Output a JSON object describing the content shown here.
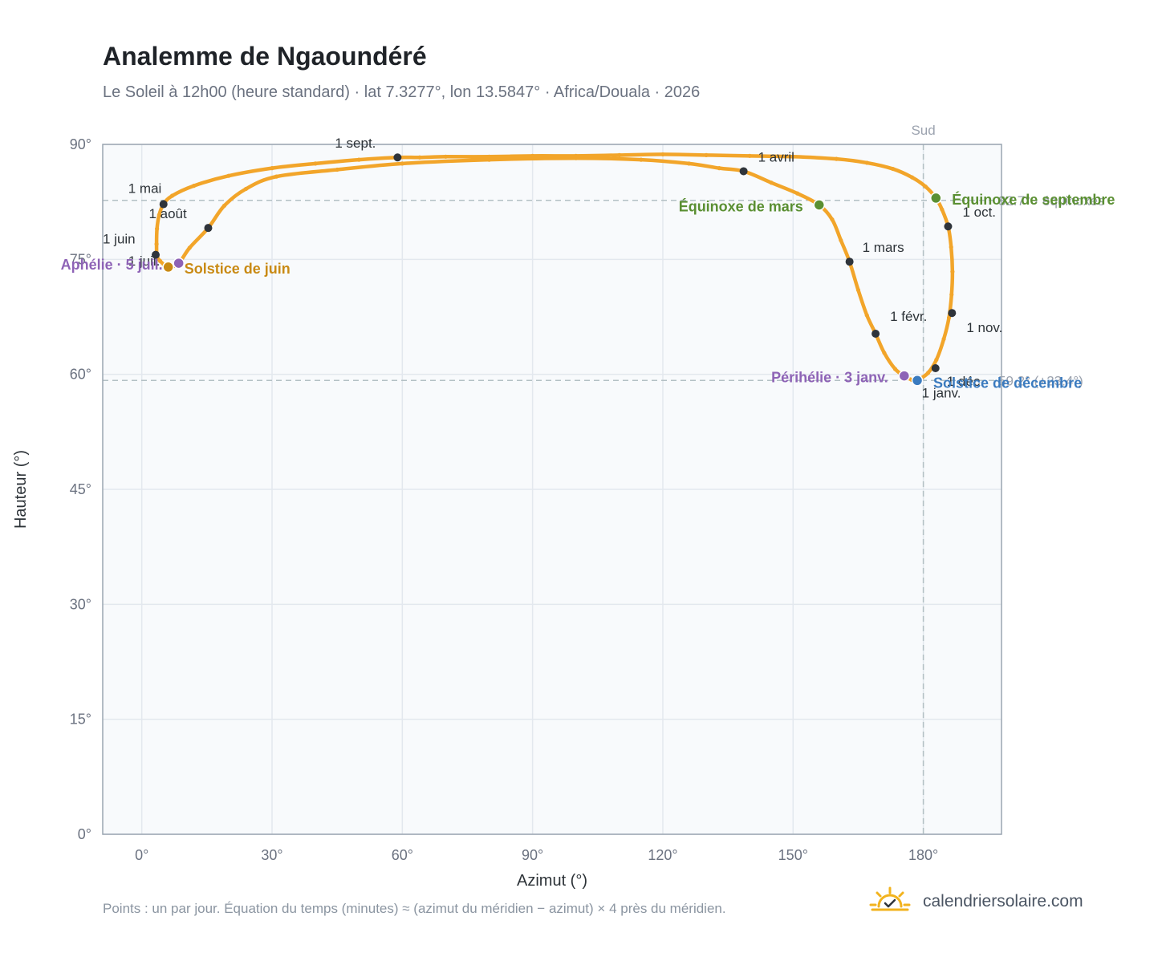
{
  "title": "Analemme de Ngaoundéré",
  "subtitle": "Le Soleil à 12h00 (heure standard) · lat 7.3277°, lon 13.5847° · Africa/Douala · 2026",
  "footnote": "Points : un par jour. Équation du temps (minutes) ≈ (azimut du méridien − azimut) × 4 près du méridien.",
  "brand": {
    "text": "calendriersolaire.com",
    "icon": "sun-check-icon",
    "color": "#f2b31e"
  },
  "colors": {
    "curve": "#f2a52a",
    "month_marker": "#2f343b",
    "equinox": "#5a8f32",
    "solstice_june": "#c98a14",
    "solstice_december": "#3b7bbf",
    "apsis": "#8e63b6",
    "plot_bg": "#f8fafc",
    "reference_line": "#b3c0c4"
  },
  "chart_data": {
    "type": "scatter",
    "title": "Analemme de Ngaoundéré",
    "xlabel": "Azimut (°)",
    "ylabel": "Hauteur (°)",
    "xlim": [
      -9,
      198
    ],
    "ylim": [
      0,
      90
    ],
    "xticks": [
      0,
      30,
      60,
      90,
      120,
      150,
      180
    ],
    "yticks": [
      0,
      15,
      30,
      45,
      60,
      75,
      90
    ],
    "tick_suffix": "°",
    "grid": true,
    "sun_path_anchors": [
      [
        178.6,
        59.2
      ],
      [
        179.2,
        59.4
      ],
      [
        181.1,
        60.2
      ],
      [
        183.0,
        61.9
      ],
      [
        184.7,
        64.6
      ],
      [
        185.9,
        67.4
      ],
      [
        186.5,
        70.4
      ],
      [
        186.7,
        73.4
      ],
      [
        186.4,
        76.6
      ],
      [
        185.7,
        79.3
      ],
      [
        184.3,
        81.5
      ],
      [
        182.9,
        83.0
      ],
      [
        180.5,
        84.5
      ],
      [
        177.4,
        85.7
      ],
      [
        173.0,
        86.8
      ],
      [
        167.0,
        87.6
      ],
      [
        160.0,
        88.1
      ],
      [
        150.0,
        88.4
      ],
      [
        140.0,
        88.5
      ],
      [
        130.0,
        88.6
      ],
      [
        120.0,
        88.7
      ],
      [
        110.0,
        88.6
      ],
      [
        100.0,
        88.5
      ],
      [
        90.0,
        88.5
      ],
      [
        80.0,
        88.4
      ],
      [
        70.0,
        88.4
      ],
      [
        64.0,
        88.3
      ],
      [
        58.9,
        88.3
      ],
      [
        50.0,
        88.0
      ],
      [
        40.0,
        87.5
      ],
      [
        30.0,
        86.9
      ],
      [
        20.0,
        85.9
      ],
      [
        12.0,
        84.6
      ],
      [
        7.0,
        83.3
      ],
      [
        5.0,
        82.2
      ],
      [
        4.0,
        80.8
      ],
      [
        3.5,
        79.0
      ],
      [
        3.4,
        77.0
      ],
      [
        3.5,
        75.5
      ],
      [
        4.2,
        74.8
      ],
      [
        6.1,
        74.0
      ],
      [
        8.5,
        74.5
      ],
      [
        11.0,
        76.5
      ],
      [
        15.3,
        79.1
      ],
      [
        19.0,
        82.0
      ],
      [
        24.0,
        84.2
      ],
      [
        31.0,
        85.8
      ],
      [
        45.0,
        86.7
      ],
      [
        60.0,
        87.5
      ],
      [
        80.0,
        88.0
      ],
      [
        100.0,
        88.2
      ],
      [
        115.0,
        88.0
      ],
      [
        126.0,
        87.5
      ],
      [
        133.0,
        86.9
      ],
      [
        138.6,
        86.5
      ],
      [
        145.0,
        85.0
      ],
      [
        151.0,
        83.6
      ],
      [
        156.0,
        82.1
      ],
      [
        159.0,
        80.2
      ],
      [
        161.0,
        77.5
      ],
      [
        163.0,
        74.7
      ],
      [
        165.0,
        71.0
      ],
      [
        167.0,
        67.7
      ],
      [
        169.0,
        65.3
      ],
      [
        171.0,
        62.8
      ],
      [
        173.5,
        60.7
      ],
      [
        175.6,
        59.8
      ],
      [
        177.3,
        59.3
      ],
      [
        178.6,
        59.2
      ]
    ],
    "month_markers": [
      {
        "label": "1 janv.",
        "x": 178.9,
        "y": 59.3
      },
      {
        "label": "1 févr.",
        "x": 169.0,
        "y": 65.3
      },
      {
        "label": "1 mars",
        "x": 163.0,
        "y": 74.7
      },
      {
        "label": "1 avril",
        "x": 138.6,
        "y": 86.5
      },
      {
        "label": "1 mai",
        "x": 5.0,
        "y": 82.2
      },
      {
        "label": "1 juin",
        "x": 3.2,
        "y": 75.6
      },
      {
        "label": "1 juil.",
        "x": 6.1,
        "y": 74.0
      },
      {
        "label": "1 août",
        "x": 15.3,
        "y": 79.1
      },
      {
        "label": "1 sept.",
        "x": 58.9,
        "y": 88.3
      },
      {
        "label": "1 oct.",
        "x": 185.7,
        "y": 79.3
      },
      {
        "label": "1 nov.",
        "x": 186.6,
        "y": 68.0
      },
      {
        "label": "1 déc.",
        "x": 182.8,
        "y": 60.8
      }
    ],
    "events": [
      {
        "label": "Équinoxe de mars",
        "x": 156.0,
        "y": 82.1,
        "color_key": "equinox"
      },
      {
        "label": "Solstice de juin",
        "x": 6.1,
        "y": 74.0,
        "color_key": "solstice_june"
      },
      {
        "label": "Équinoxe de septembre",
        "x": 182.9,
        "y": 83.0,
        "color_key": "equinox"
      },
      {
        "label": "Solstice de décembre",
        "x": 178.6,
        "y": 59.2,
        "color_key": "solstice_december"
      },
      {
        "label": "Périhélie · 3 janv.",
        "x": 175.6,
        "y": 59.8,
        "color_key": "apsis"
      },
      {
        "label": "Aphélie · 5 juil.",
        "x": 8.5,
        "y": 74.5,
        "color_key": "apsis"
      }
    ],
    "reference_lines": [
      {
        "axis": "x",
        "value": 180,
        "label": "Sud"
      },
      {
        "axis": "y",
        "value": 82.7,
        "label": "82.7° · équinoxes"
      },
      {
        "axis": "y",
        "value": 59.2,
        "label": "59.2° (+23.4°)"
      }
    ]
  }
}
